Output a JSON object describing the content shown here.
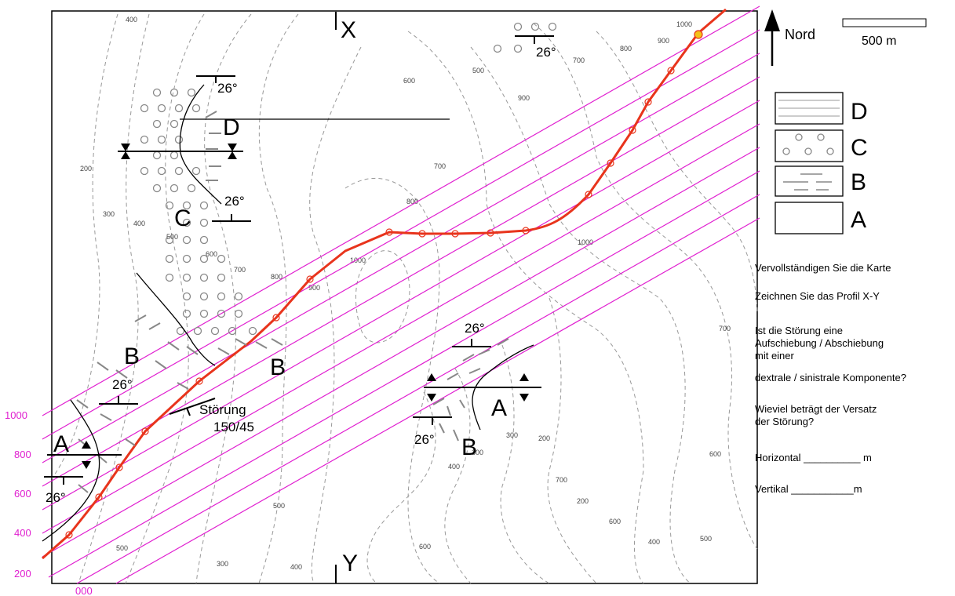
{
  "map": {
    "label_x": "X",
    "label_y": "Y",
    "north_label": "Nord",
    "scale_label": "500 m",
    "contour_labels": [
      "400",
      "500",
      "600",
      "700",
      "800",
      "900",
      "1000",
      "1000",
      "900",
      "800",
      "700",
      "600",
      "500",
      "400",
      "300",
      "200",
      "700",
      "800",
      "900",
      "1000",
      "700",
      "600",
      "500",
      "400",
      "300",
      "200",
      "300",
      "400",
      "500",
      "600",
      "700",
      "200",
      "300",
      "400",
      "500",
      "600",
      "700",
      "800",
      "200",
      "300",
      "400",
      "500",
      "600"
    ],
    "unit_labels": {
      "A1": "A",
      "A2": "A",
      "B1": "B",
      "B2": "B",
      "B3": "B",
      "C1": "C",
      "D1": "D"
    },
    "dips": [
      "26°",
      "26°",
      "26°",
      "26°",
      "26°",
      "26°",
      "26°"
    ],
    "fault": {
      "name": "Störung",
      "orientation": "150/45"
    },
    "pink_axis": [
      "1000",
      "800",
      "600",
      "400",
      "200",
      "000"
    ]
  },
  "legend": [
    {
      "unit": "D",
      "pattern": "lines"
    },
    {
      "unit": "C",
      "pattern": "circles"
    },
    {
      "unit": "B",
      "pattern": "dashes"
    },
    {
      "unit": "A",
      "pattern": "blank"
    }
  ],
  "tasks": {
    "t1": "Vervollständigen Sie die Karte",
    "t2": "Zeichnen Sie das Profil X-Y",
    "t3_l1": "Ist die Störung eine",
    "t3_l2": "Aufschiebung / Abschiebung",
    "t3_l3": "mit einer",
    "t3_l4": "dextrale / sinistrale Komponente?",
    "t4_l1": "Wieviel beträgt der Versatz",
    "t4_l2": "der Störung?",
    "t5": "Horizontal __________ m",
    "t6": "Vertikal ___________m"
  },
  "colors": {
    "construction": "#e020d0",
    "fault_trace": "#e8341c",
    "contours": "#999999"
  }
}
